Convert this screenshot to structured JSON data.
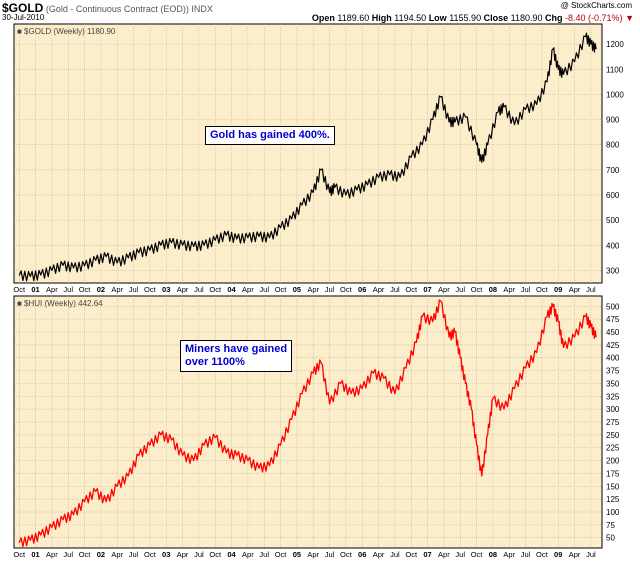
{
  "header": {
    "symbol": "$GOLD",
    "description": "(Gold - Continuous Contract (EOD))",
    "exchange": "INDX",
    "date": "30-Jul-2010",
    "watermark": "@ StockCharts.com",
    "open_label": "Open",
    "open_value": "1189.60",
    "high_label": "High",
    "high_value": "1194.50",
    "low_label": "Low",
    "low_value": "1155.90",
    "close_label": "Close",
    "close_value": "1180.90",
    "chg_label": "Chg",
    "chg_value": "-8.40 (-0.71%)",
    "chg_arrow": "▼"
  },
  "colors": {
    "background": "#fdeecb",
    "gold_line": "#000000",
    "hui_line": "#ff0000",
    "note_text": "#0000cc",
    "grid": "#bbb09a"
  },
  "chart_data": [
    {
      "type": "line",
      "title": "$GOLD (Weekly) 1180.90",
      "legend_label": "$GOLD (Weekly) 1180.90",
      "series": [
        {
          "name": "$GOLD (Weekly)",
          "color": "#000000",
          "x": [
            2001.75,
            2001.92,
            2002.08,
            2002.25,
            2002.42,
            2002.58,
            2002.75,
            2002.92,
            2003.08,
            2003.25,
            2003.42,
            2003.58,
            2003.75,
            2003.92,
            2004.08,
            2004.25,
            2004.42,
            2004.58,
            2004.75,
            2004.92,
            2005.08,
            2005.25,
            2005.42,
            2005.58,
            2005.75,
            2005.92,
            2006.08,
            2006.25,
            2006.37,
            2006.5,
            2006.58,
            2006.75,
            2006.92,
            2007.08,
            2007.25,
            2007.42,
            2007.58,
            2007.75,
            2007.92,
            2008.08,
            2008.2,
            2008.33,
            2008.42,
            2008.58,
            2008.75,
            2008.83,
            2008.92,
            2009.08,
            2009.17,
            2009.33,
            2009.5,
            2009.67,
            2009.83,
            2009.92,
            2010.0,
            2010.08,
            2010.25,
            2010.42,
            2010.5,
            2010.58
          ],
          "y": [
            280,
            276,
            282,
            300,
            320,
            310,
            318,
            340,
            355,
            330,
            350,
            370,
            380,
            400,
            410,
            400,
            395,
            400,
            420,
            440,
            425,
            430,
            435,
            430,
            470,
            505,
            560,
            610,
            700,
            610,
            630,
            600,
            620,
            640,
            670,
            680,
            670,
            750,
            800,
            900,
            990,
            890,
            890,
            910,
            800,
            730,
            800,
            930,
            950,
            880,
            940,
            960,
            1050,
            1180,
            1100,
            1080,
            1130,
            1230,
            1200,
            1180
          ]
        }
      ],
      "ylim": [
        250,
        1280
      ],
      "y_ticks": [
        "300",
        "400",
        "500",
        "600",
        "700",
        "800",
        "900",
        "1000",
        "1100",
        "1200"
      ],
      "note": [
        "Gold has gained 400%."
      ]
    },
    {
      "type": "line",
      "title": "$HUI (Weekly) 442.64",
      "legend_label": "$HUI (Weekly) 442.64",
      "series": [
        {
          "name": "$HUI (Weekly)",
          "color": "#ff0000",
          "x": [
            2001.75,
            2001.92,
            2002.08,
            2002.25,
            2002.42,
            2002.58,
            2002.75,
            2002.92,
            2003.08,
            2003.25,
            2003.42,
            2003.58,
            2003.75,
            2003.92,
            2004.08,
            2004.25,
            2004.42,
            2004.58,
            2004.75,
            2004.92,
            2005.08,
            2005.25,
            2005.42,
            2005.58,
            2005.75,
            2005.92,
            2006.08,
            2006.25,
            2006.37,
            2006.5,
            2006.67,
            2006.83,
            2007.0,
            2007.17,
            2007.33,
            2007.5,
            2007.67,
            2007.83,
            2007.92,
            2008.08,
            2008.2,
            2008.33,
            2008.42,
            2008.5,
            2008.58,
            2008.67,
            2008.75,
            2008.83,
            2008.92,
            2009.0,
            2009.17,
            2009.33,
            2009.5,
            2009.67,
            2009.83,
            2009.92,
            2010.0,
            2010.08,
            2010.25,
            2010.42,
            2010.5,
            2010.58
          ],
          "y": [
            40,
            45,
            55,
            70,
            85,
            95,
            120,
            140,
            120,
            150,
            170,
            210,
            230,
            250,
            240,
            210,
            200,
            230,
            245,
            215,
            210,
            200,
            185,
            190,
            230,
            280,
            330,
            370,
            390,
            310,
            350,
            330,
            340,
            370,
            360,
            330,
            380,
            430,
            480,
            470,
            510,
            440,
            450,
            400,
            350,
            300,
            230,
            170,
            250,
            320,
            300,
            340,
            380,
            410,
            480,
            500,
            470,
            420,
            440,
            480,
            460,
            440
          ]
        }
      ],
      "ylim": [
        30,
        520
      ],
      "y_ticks": [
        "50",
        "75",
        "100",
        "125",
        "150",
        "175",
        "200",
        "225",
        "250",
        "275",
        "300",
        "325",
        "350",
        "375",
        "400",
        "425",
        "450",
        "475",
        "500"
      ],
      "note": [
        "Miners have gained",
        "over 1100%"
      ]
    }
  ],
  "x_axis_ticks": [
    "Oct",
    "01",
    "Apr",
    "Jul",
    "Oct",
    "02",
    "Apr",
    "Jul",
    "Oct",
    "03",
    "Apr",
    "Jul",
    "Oct",
    "04",
    "Apr",
    "Jul",
    "Oct",
    "05",
    "Apr",
    "Jul",
    "Oct",
    "06",
    "Apr",
    "Jul",
    "Oct",
    "07",
    "Apr",
    "Jul",
    "Oct",
    "08",
    "Apr",
    "Jul",
    "Oct",
    "09",
    "Apr",
    "Jul",
    "Oct",
    "10",
    "Apr",
    "Jul"
  ],
  "x_axis_year_labels": [
    "01",
    "02",
    "03",
    "04",
    "05",
    "06",
    "07",
    "08",
    "09",
    "10"
  ]
}
